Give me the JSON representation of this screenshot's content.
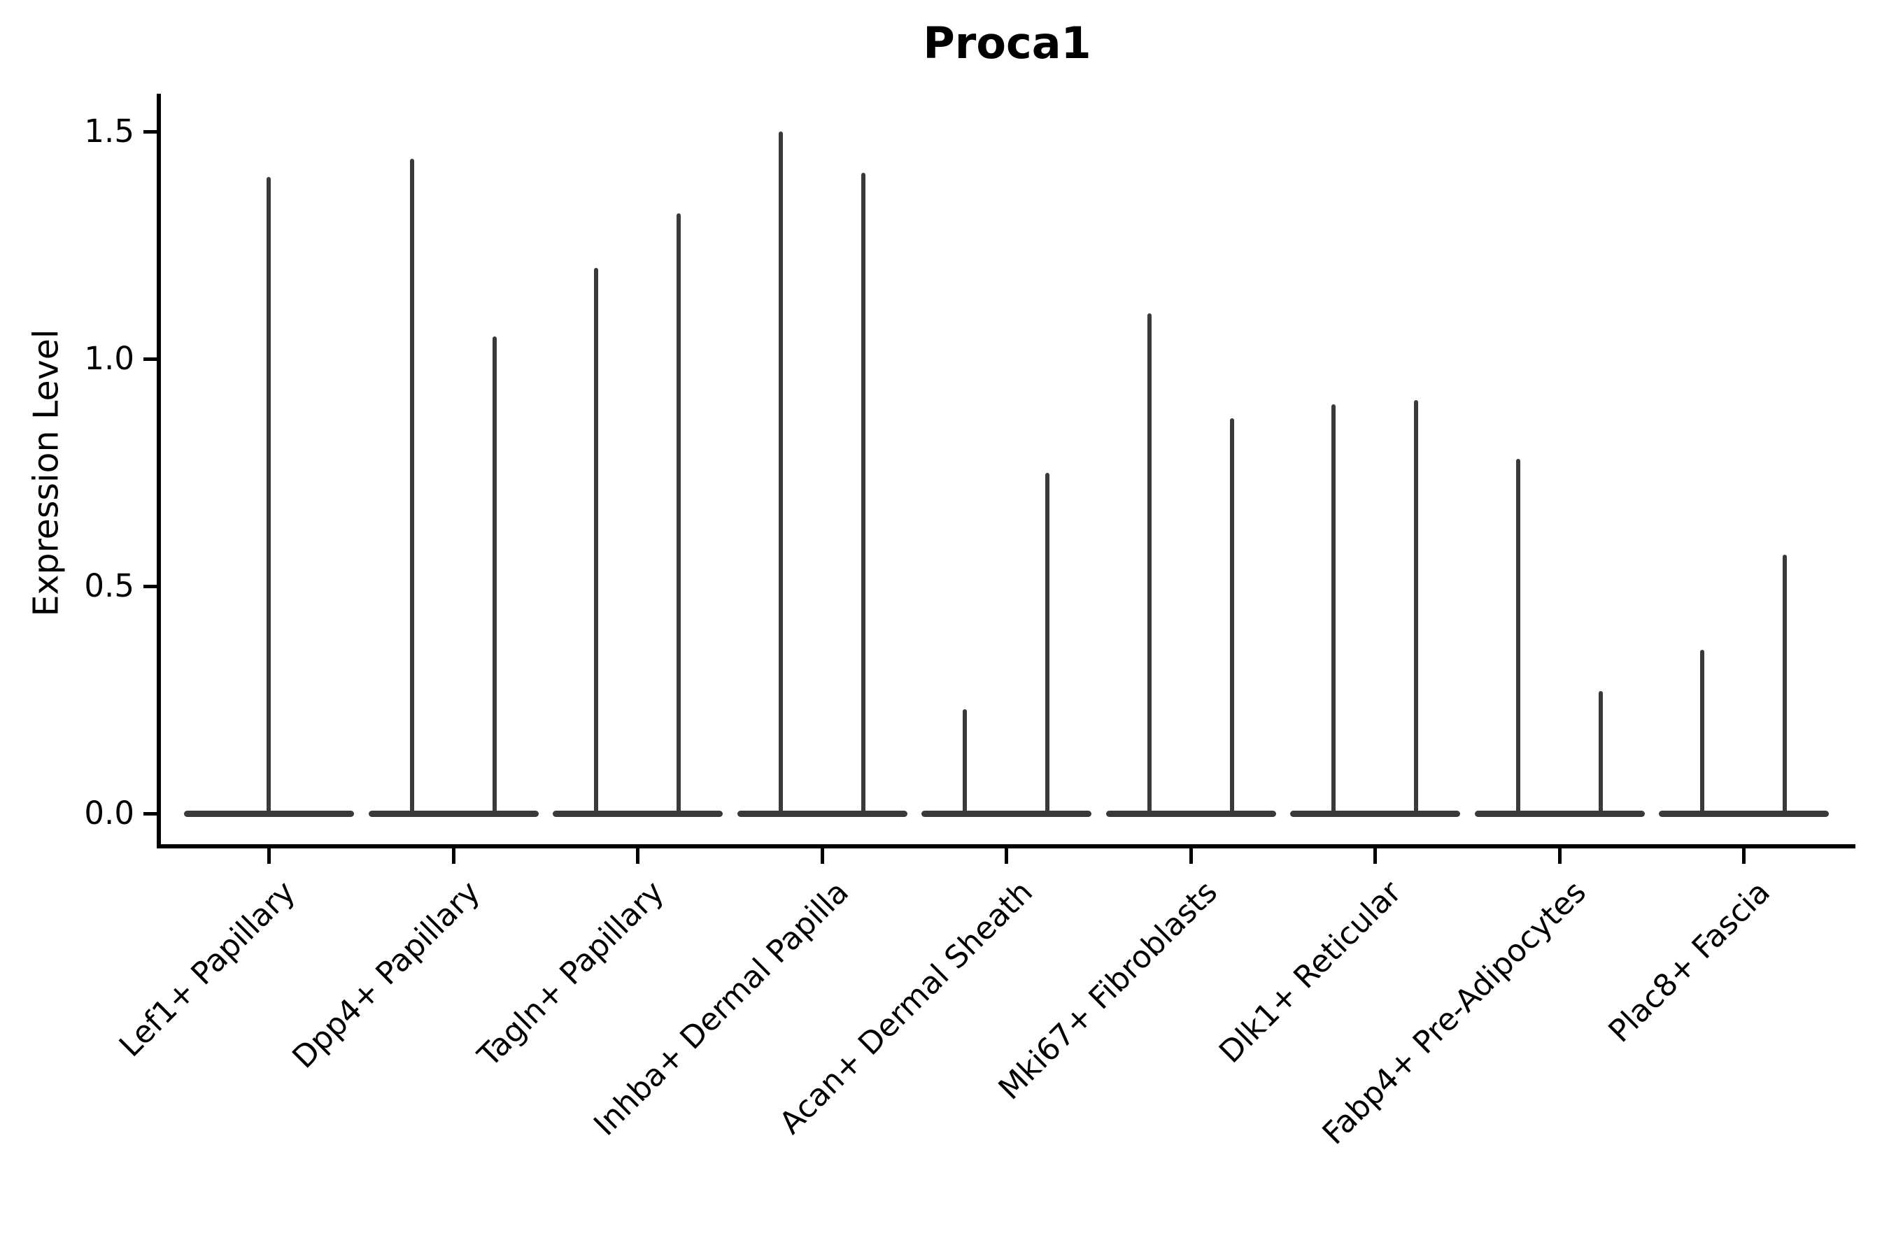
{
  "title": "Proca1",
  "chart_data": {
    "type": "violin",
    "title": "Proca1",
    "ylabel": "Expression Level",
    "xlabel": "",
    "ytick_labels": [
      "0.0",
      "0.5",
      "1.0",
      "1.5"
    ],
    "ylim": [
      -0.07,
      1.58
    ],
    "grid": false,
    "legend": null,
    "violin_color": "#3a3a3a",
    "categories": [
      "Lef1+ Papillary",
      "Dpp4+ Papillary",
      "Tagln+ Papillary",
      "Inhba+ Dermal Papilla",
      "Acan+ Dermal Sheath",
      "Mki67+ Fibroblasts",
      "Dlk1+ Reticular",
      "Fabp4+ Pre-Adipocytes",
      "Plac8+ Fascia"
    ],
    "series": [
      {
        "category": "Lef1+ Papillary",
        "violin_max_values": [
          1.4
        ]
      },
      {
        "category": "Dpp4+ Papillary",
        "violin_max_values": [
          1.44,
          1.05
        ]
      },
      {
        "category": "Tagln+ Papillary",
        "violin_max_values": [
          1.2,
          1.32
        ]
      },
      {
        "category": "Inhba+ Dermal Papilla",
        "violin_max_values": [
          1.5,
          1.41
        ]
      },
      {
        "category": "Acan+ Dermal Sheath",
        "violin_max_values": [
          0.23,
          0.75
        ]
      },
      {
        "category": "Mki67+ Fibroblasts",
        "violin_max_values": [
          1.1,
          0.87
        ]
      },
      {
        "category": "Dlk1+ Reticular",
        "violin_max_values": [
          0.9,
          0.91
        ]
      },
      {
        "category": "Fabp4+ Pre-Adipocytes",
        "violin_max_values": [
          0.78,
          0.27
        ]
      },
      {
        "category": "Plac8+ Fascia",
        "violin_max_values": [
          0.36,
          0.57
        ]
      }
    ]
  }
}
